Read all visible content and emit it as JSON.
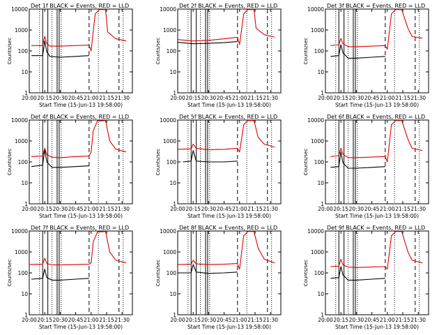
{
  "chart_data": [
    {
      "type": "line",
      "title": "Det  1f BLACK = Events, RED = LLD",
      "xlabel": "Start Time (15-Jun-13 19:58:00)",
      "ylabel": "Counts/sec",
      "yscale": "log",
      "ylim": [
        1,
        10000
      ],
      "ytick_labels": [
        "1",
        "10",
        "100",
        "1000",
        "10000"
      ],
      "x_tick_labels": [
        "20:00",
        "20:15",
        "20:30",
        "20:45",
        "21:00",
        "21:15",
        "21:30"
      ],
      "series": [
        {
          "color": "#000000",
          "x": [
            "20:02",
            "20:13",
            "20:15",
            "20:17",
            "20:20",
            "20:30",
            "20:45",
            "20:58"
          ],
          "y": [
            60,
            60,
            300,
            90,
            55,
            50,
            55,
            60
          ]
        },
        {
          "color": "#e00000",
          "x": [
            "20:02",
            "20:13",
            "20:15",
            "20:17",
            "20:20",
            "20:30",
            "20:45",
            "20:58",
            "21:00",
            "21:02",
            "21:04",
            "21:08",
            "21:14",
            "21:16",
            "21:24",
            "21:34"
          ],
          "y": [
            180,
            180,
            500,
            220,
            170,
            170,
            180,
            190,
            100,
            900,
            6000,
            9500,
            9500,
            800,
            380,
            300
          ]
        }
      ]
    },
    {
      "type": "line",
      "title": "Det  2f BLACK = Events, RED = LLD",
      "xlabel": "Start Time (15-Jun-13 19:58:00)",
      "ylabel": "Counts/sec",
      "yscale": "log",
      "ylim": [
        1,
        10000
      ],
      "ytick_labels": [
        "1",
        "10",
        "100",
        "1000",
        "10000"
      ],
      "x_tick_labels": [
        "20:00",
        "20:15",
        "20:30",
        "20:45",
        "21:00",
        "21:15",
        "21:30"
      ],
      "series": [
        {
          "color": "#000000",
          "x": [
            "20:00",
            "20:15",
            "20:30",
            "20:45",
            "20:58"
          ],
          "y": [
            260,
            220,
            230,
            250,
            280
          ]
        },
        {
          "color": "#e00000",
          "x": [
            "20:00",
            "20:15",
            "20:30",
            "20:45",
            "20:58",
            "21:00",
            "21:04",
            "21:08",
            "21:14",
            "21:16",
            "21:24",
            "21:34"
          ],
          "y": [
            350,
            300,
            320,
            380,
            450,
            200,
            6000,
            9500,
            9500,
            1200,
            600,
            450
          ]
        }
      ]
    },
    {
      "type": "line",
      "title": "Det  3f BLACK = Events, RED = LLD",
      "xlabel": "Start Time (15-Jun-13 19:58:00)",
      "ylabel": "Counts/sec",
      "yscale": "log",
      "ylim": [
        1,
        10000
      ],
      "ytick_labels": [
        "1",
        "10",
        "100",
        "1000",
        "10000"
      ],
      "x_tick_labels": [
        "20:00",
        "20:15",
        "20:30",
        "20:45",
        "21:00",
        "21:15",
        "21:30"
      ],
      "series": [
        {
          "color": "#000000",
          "x": [
            "20:05",
            "20:13",
            "20:15",
            "20:17",
            "20:22",
            "20:30",
            "20:45",
            "20:58"
          ],
          "y": [
            55,
            60,
            200,
            80,
            45,
            45,
            50,
            55
          ]
        },
        {
          "color": "#e00000",
          "x": [
            "20:05",
            "20:13",
            "20:15",
            "20:17",
            "20:22",
            "20:30",
            "20:45",
            "20:58",
            "21:00",
            "21:04",
            "21:08",
            "21:14",
            "21:20",
            "21:24",
            "21:34"
          ],
          "y": [
            180,
            200,
            400,
            220,
            160,
            160,
            170,
            180,
            120,
            6000,
            9500,
            9500,
            1200,
            500,
            400
          ]
        }
      ]
    },
    {
      "type": "line",
      "title": "Det  4f BLACK = Events, RED = LLD",
      "xlabel": "Start Time (15-Jun-13 19:58:00)",
      "ylabel": "Counts/sec",
      "yscale": "log",
      "ylim": [
        1,
        10000
      ],
      "ytick_labels": [
        "1",
        "10",
        "100",
        "1000",
        "10000"
      ],
      "x_tick_labels": [
        "20:00",
        "20:15",
        "20:30",
        "20:45",
        "21:00",
        "21:15",
        "21:30"
      ],
      "series": [
        {
          "color": "#000000",
          "x": [
            "20:02",
            "20:13",
            "20:15",
            "20:17",
            "20:22",
            "20:30",
            "20:45",
            "20:58"
          ],
          "y": [
            60,
            70,
            400,
            100,
            55,
            55,
            60,
            65
          ]
        },
        {
          "color": "#e00000",
          "x": [
            "20:02",
            "20:13",
            "20:15",
            "20:17",
            "20:22",
            "20:30",
            "20:45",
            "20:58",
            "21:00",
            "21:02",
            "21:06",
            "21:14",
            "21:18",
            "21:24",
            "21:34"
          ],
          "y": [
            180,
            190,
            450,
            220,
            170,
            160,
            180,
            190,
            300,
            3000,
            9000,
            9500,
            1000,
            400,
            300
          ]
        }
      ]
    },
    {
      "type": "line",
      "title": "Det  5f BLACK = Events, RED = LLD",
      "xlabel": "Start Time (15-Jun-13 19:58:00)",
      "ylabel": "Counts/sec",
      "yscale": "log",
      "ylim": [
        1,
        10000
      ],
      "ytick_labels": [
        "1",
        "10",
        "100",
        "1000",
        "10000"
      ],
      "x_tick_labels": [
        "20:00",
        "20:15",
        "20:30",
        "20:45",
        "21:00",
        "21:15",
        "21:30"
      ],
      "series": [
        {
          "color": "#000000",
          "x": [
            "20:05",
            "20:13",
            "20:15",
            "20:18",
            "20:30",
            "20:45",
            "20:58"
          ],
          "y": [
            100,
            110,
            350,
            110,
            100,
            100,
            110
          ]
        },
        {
          "color": "#e00000",
          "x": [
            "20:00",
            "20:13",
            "20:15",
            "20:18",
            "20:30",
            "20:45",
            "20:58",
            "21:00",
            "21:04",
            "21:08",
            "21:14",
            "21:18",
            "21:24",
            "21:34"
          ],
          "y": [
            400,
            420,
            700,
            450,
            380,
            400,
            450,
            300,
            6000,
            9500,
            9500,
            1500,
            700,
            500
          ]
        }
      ]
    },
    {
      "type": "line",
      "title": "Det  6f BLACK = Events, RED = LLD",
      "xlabel": "Start Time (15-Jun-13 19:58:00)",
      "ylabel": "Counts/sec",
      "yscale": "log",
      "ylim": [
        1,
        10000
      ],
      "ytick_labels": [
        "1",
        "10",
        "100",
        "1000",
        "10000"
      ],
      "x_tick_labels": [
        "20:00",
        "20:15",
        "20:30",
        "20:45",
        "21:00",
        "21:15",
        "21:30"
      ],
      "series": [
        {
          "color": "#000000",
          "x": [
            "20:05",
            "20:13",
            "20:15",
            "20:17",
            "20:22",
            "20:30",
            "20:45",
            "20:58"
          ],
          "y": [
            55,
            60,
            300,
            90,
            50,
            50,
            55,
            60
          ]
        },
        {
          "color": "#e00000",
          "x": [
            "20:05",
            "20:13",
            "20:15",
            "20:17",
            "20:22",
            "20:30",
            "20:45",
            "20:58",
            "21:00",
            "21:04",
            "21:08",
            "21:14",
            "21:20",
            "21:24",
            "21:34"
          ],
          "y": [
            180,
            200,
            450,
            230,
            160,
            160,
            170,
            180,
            100,
            6000,
            9500,
            9500,
            1200,
            450,
            350
          ]
        }
      ]
    },
    {
      "type": "line",
      "title": "Det  7f BLACK = Events, RED = LLD",
      "xlabel": "Start Time (15-Jun-13 19:58:00)",
      "ylabel": "Counts/sec",
      "yscale": "log",
      "ylim": [
        1,
        10000
      ],
      "ytick_labels": [
        "1",
        "10",
        "100",
        "1000",
        "10000"
      ],
      "x_tick_labels": [
        "20:00",
        "20:15",
        "20:30",
        "20:45",
        "21:00",
        "21:15",
        "21:30"
      ],
      "series": [
        {
          "color": "#000000",
          "x": [
            "20:02",
            "20:13",
            "20:15",
            "20:17",
            "20:22",
            "20:30",
            "20:45",
            "20:58"
          ],
          "y": [
            50,
            55,
            150,
            60,
            45,
            45,
            50,
            55
          ]
        },
        {
          "color": "#e00000",
          "x": [
            "20:00",
            "20:13",
            "20:15",
            "20:17",
            "20:22",
            "20:30",
            "20:45",
            "20:58",
            "21:00",
            "21:02",
            "21:06",
            "21:14",
            "21:18",
            "21:24",
            "21:34"
          ],
          "y": [
            250,
            260,
            500,
            280,
            240,
            240,
            250,
            260,
            300,
            3000,
            9000,
            9500,
            1000,
            400,
            300
          ]
        }
      ]
    },
    {
      "type": "line",
      "title": "Det  8f BLACK = Events, RED = LLD",
      "xlabel": "Start Time (15-Jun-13 19:58:00)",
      "ylabel": "Counts/sec",
      "yscale": "log",
      "ylim": [
        1,
        10000
      ],
      "ytick_labels": [
        "1",
        "10",
        "100",
        "1000",
        "10000"
      ],
      "x_tick_labels": [
        "20:00",
        "20:15",
        "20:30",
        "20:45",
        "21:00",
        "21:15",
        "21:30"
      ],
      "series": [
        {
          "color": "#000000",
          "x": [
            "20:00",
            "20:13",
            "20:15",
            "20:18",
            "20:30",
            "20:45",
            "20:58"
          ],
          "y": [
            100,
            100,
            250,
            110,
            95,
            100,
            110
          ]
        },
        {
          "color": "#e00000",
          "x": [
            "20:00",
            "20:13",
            "20:15",
            "20:18",
            "20:30",
            "20:45",
            "20:58",
            "21:00",
            "21:04",
            "21:08",
            "21:14",
            "21:18",
            "21:24",
            "21:34"
          ],
          "y": [
            250,
            260,
            400,
            270,
            250,
            260,
            280,
            150,
            6000,
            9500,
            9500,
            1500,
            450,
            300
          ]
        }
      ]
    },
    {
      "type": "line",
      "title": "Det  9f BLACK = Events, RED = LLD",
      "xlabel": "Start Time (15-Jun-13 19:58:00)",
      "ylabel": "Counts/sec",
      "yscale": "log",
      "ylim": [
        1,
        10000
      ],
      "ytick_labels": [
        "1",
        "10",
        "100",
        "1000",
        "10000"
      ],
      "x_tick_labels": [
        "20:00",
        "20:15",
        "20:30",
        "20:45",
        "21:00",
        "21:15",
        "21:30"
      ],
      "series": [
        {
          "color": "#000000",
          "x": [
            "20:05",
            "20:13",
            "20:15",
            "20:17",
            "20:22",
            "20:30",
            "20:45",
            "20:58"
          ],
          "y": [
            55,
            60,
            200,
            80,
            45,
            45,
            50,
            55
          ]
        },
        {
          "color": "#e00000",
          "x": [
            "20:05",
            "20:13",
            "20:15",
            "20:17",
            "20:22",
            "20:30",
            "20:45",
            "20:58",
            "21:00",
            "21:04",
            "21:08",
            "21:14",
            "21:20",
            "21:24",
            "21:34"
          ],
          "y": [
            200,
            210,
            450,
            240,
            190,
            180,
            190,
            200,
            150,
            6000,
            9500,
            9500,
            1000,
            400,
            300
          ]
        }
      ]
    }
  ]
}
